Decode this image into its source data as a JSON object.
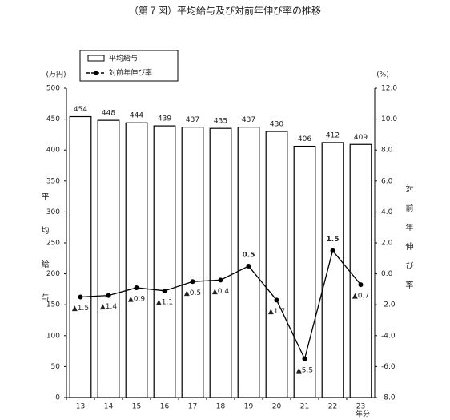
{
  "chart_data": {
    "type": "bar-line",
    "title": "（第７図）平均給与及び対前年伸び率の推移",
    "categories": [
      "13",
      "14",
      "15",
      "16",
      "17",
      "18",
      "19",
      "20",
      "21",
      "22",
      "23"
    ],
    "x_label": "年分",
    "y_unit": "(万円)",
    "y2_unit": "(%)",
    "y_label": "平均給与",
    "y2_label": "対前年伸び率",
    "series": [
      {
        "name": "平均給与",
        "color": "#ffffff",
        "values": [
          454,
          448,
          444,
          439,
          437,
          435,
          437,
          430,
          406,
          412,
          409
        ]
      },
      {
        "name": "対前年伸び率",
        "color": "#000000",
        "axis": "y2",
        "values": [
          -1.5,
          -1.4,
          -0.9,
          -1.1,
          -0.5,
          -0.4,
          0.5,
          -1.7,
          -5.5,
          1.5,
          -0.7
        ],
        "value_labels": [
          "▲1.5",
          "▲1.4",
          "▲0.9",
          "▲1.1",
          "▲0.5",
          "▲0.4",
          "0.5",
          "▲1.7",
          "▲5.5",
          "1.5",
          "▲0.7"
        ]
      }
    ],
    "ylim": [
      0,
      500
    ],
    "yticks": [
      0,
      50,
      100,
      150,
      200,
      250,
      300,
      350,
      400,
      450,
      500
    ],
    "y2lim": [
      -8,
      12
    ],
    "y2ticks": [
      {
        "value": -8,
        "label": "-8.0"
      },
      {
        "value": -6,
        "label": "-6.0"
      },
      {
        "value": -4,
        "label": "-4.0"
      },
      {
        "value": -2,
        "label": "-2.0"
      },
      {
        "value": 0,
        "label": "0.0"
      },
      {
        "value": 2,
        "label": "2.0"
      },
      {
        "value": 4,
        "label": "4.0"
      },
      {
        "value": 6,
        "label": "6.0"
      },
      {
        "value": 8,
        "label": "8.0"
      },
      {
        "value": 10,
        "label": "10.0"
      },
      {
        "value": 12,
        "label": "12.0"
      }
    ]
  }
}
